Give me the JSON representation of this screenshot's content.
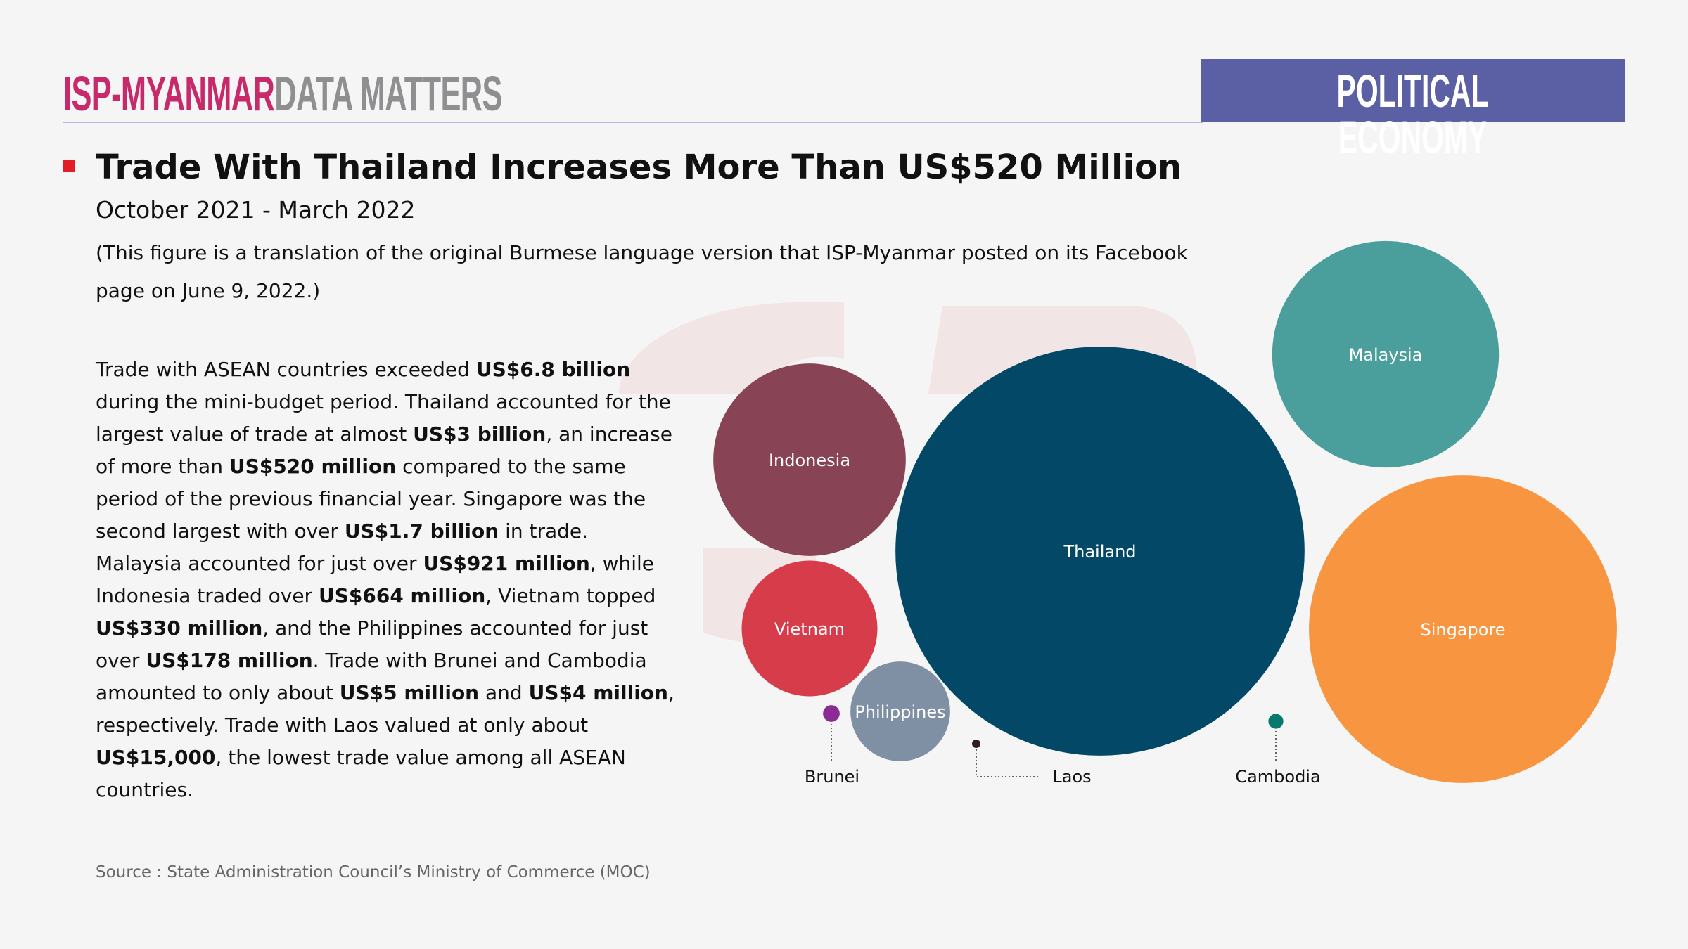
{
  "header": {
    "logo_brand": "ISP-MYANMAR",
    "logo_product": "DATA MATTERS",
    "section": "POLITICAL ECONOMY"
  },
  "title": "Trade With Thailand Increases More Than US$520 Million",
  "period": "October 2021 - March 2022",
  "note": "(This figure is a translation of the original Burmese language version that ISP-Myanmar posted on its Facebook page on June 9, 2022.)",
  "body_segments": [
    {
      "text": "Trade with ASEAN countries exceeded ",
      "bold": false
    },
    {
      "text": "US$6.8 billion",
      "bold": true
    },
    {
      "text": " during the mini-budget period. Thailand accounted for the largest value of trade at almost ",
      "bold": false
    },
    {
      "text": "US$3 billion",
      "bold": true
    },
    {
      "text": ", an increase of more than ",
      "bold": false
    },
    {
      "text": "US$520 million",
      "bold": true
    },
    {
      "text": " compared to the same period of the previous financial year. Singapore was the second largest with over ",
      "bold": false
    },
    {
      "text": "US$1.7 billion",
      "bold": true
    },
    {
      "text": " in trade. Malaysia accounted for just over ",
      "bold": false
    },
    {
      "text": "US$921 million",
      "bold": true
    },
    {
      "text": ", while Indonesia traded over ",
      "bold": false
    },
    {
      "text": "US$664 million",
      "bold": true
    },
    {
      "text": ", Vietnam topped ",
      "bold": false
    },
    {
      "text": "US$330 million",
      "bold": true
    },
    {
      "text": ", and the Philippines accounted for just over ",
      "bold": false
    },
    {
      "text": "US$178 million",
      "bold": true
    },
    {
      "text": ". Trade with Brunei and Cambodia amounted to only about ",
      "bold": false
    },
    {
      "text": "US$5 million",
      "bold": true
    },
    {
      "text": " and ",
      "bold": false
    },
    {
      "text": "US$4 million",
      "bold": true
    },
    {
      "text": ", respectively. Trade with Laos valued at only about ",
      "bold": false
    },
    {
      "text": "US$15,000",
      "bold": true
    },
    {
      "text": ", the lowest trade value among all ASEAN countries.",
      "bold": false
    }
  ],
  "source": "Source :   State Administration Council’s Ministry of Commerce (MOC)",
  "chart_data": {
    "type": "bubble",
    "title": "Trade With Thailand Increases More Than US$520 Million",
    "unit": "US$ million",
    "points": [
      {
        "label": "Thailand",
        "value": 3000,
        "color": "#034866",
        "label_inside": true
      },
      {
        "label": "Singapore",
        "value": 1700,
        "color": "#f79540",
        "label_inside": true
      },
      {
        "label": "Malaysia",
        "value": 921,
        "color": "#4a9e9c",
        "label_inside": true
      },
      {
        "label": "Indonesia",
        "value": 664,
        "color": "#884455",
        "label_inside": true
      },
      {
        "label": "Vietnam",
        "value": 330,
        "color": "#d63c4a",
        "label_inside": true
      },
      {
        "label": "Philippines",
        "value": 178,
        "color": "#7f8fa4",
        "label_inside": true
      },
      {
        "label": "Brunei",
        "value": 5,
        "color": "#8a2b94",
        "label_inside": false
      },
      {
        "label": "Cambodia",
        "value": 4,
        "color": "#077a6d",
        "label_inside": false
      },
      {
        "label": "Laos",
        "value": 0.015,
        "color": "#2e1f1f",
        "label_inside": false
      }
    ]
  }
}
